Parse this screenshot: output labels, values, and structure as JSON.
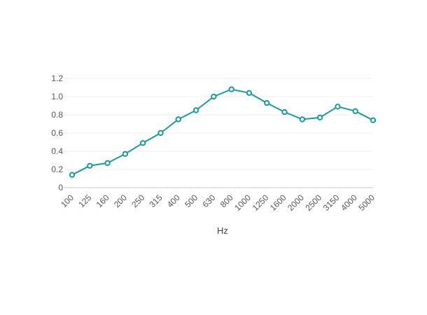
{
  "chart_data": {
    "type": "line",
    "title": "",
    "xlabel": "Hz",
    "ylabel": "",
    "categories": [
      "100",
      "125",
      "160",
      "200",
      "250",
      "315",
      "400",
      "500",
      "630",
      "800",
      "1000",
      "1250",
      "1600",
      "2000",
      "2500",
      "3150",
      "4000",
      "5000"
    ],
    "series": [
      {
        "values": [
          0.14,
          0.24,
          0.27,
          0.37,
          0.49,
          0.6,
          0.75,
          0.85,
          1.0,
          1.08,
          1.04,
          0.93,
          0.83,
          0.75,
          0.77,
          0.89,
          0.84,
          0.74
        ],
        "color": "#1a9aa0"
      }
    ],
    "ylim": [
      0,
      1.2
    ],
    "yticks": [
      "0",
      "0.2",
      "0.4",
      "0.6",
      "0.8",
      "1.0",
      "1.2"
    ],
    "grid": true,
    "legend": "none"
  }
}
